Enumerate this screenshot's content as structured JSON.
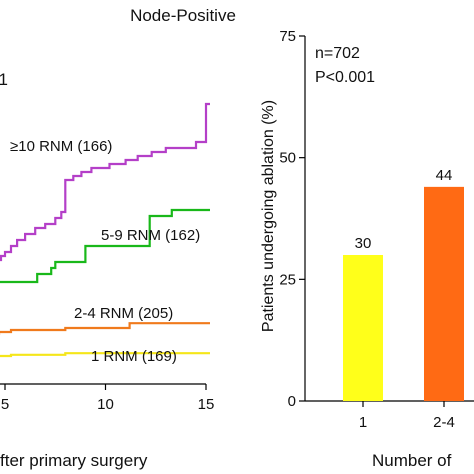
{
  "figure": {
    "title": "Node-Positive",
    "left_panel_fragment": "1"
  },
  "chart_data": [
    {
      "type": "line",
      "step": true,
      "partial_view": true,
      "xlabel": "fter primary surgery",
      "xticks": [
        5,
        10,
        15
      ],
      "xlim": [
        4.2,
        15.2
      ],
      "ylim": [
        0,
        0.8
      ],
      "grid": false,
      "series": [
        {
          "name": "≥10 RNM (166)",
          "color": "#b43fc8",
          "points": [
            [
              4.2,
              0.285
            ],
            [
              4.4,
              0.3
            ],
            [
              4.6,
              0.31
            ],
            [
              4.8,
              0.32
            ],
            [
              5.0,
              0.33
            ],
            [
              5.3,
              0.345
            ],
            [
              5.6,
              0.36
            ],
            [
              6.0,
              0.375
            ],
            [
              6.5,
              0.39
            ],
            [
              7.0,
              0.4
            ],
            [
              7.5,
              0.415
            ],
            [
              7.8,
              0.43
            ],
            [
              8.0,
              0.51
            ],
            [
              8.4,
              0.52
            ],
            [
              8.8,
              0.53
            ],
            [
              9.3,
              0.54
            ],
            [
              10.2,
              0.55
            ],
            [
              11.0,
              0.56
            ],
            [
              11.6,
              0.57
            ],
            [
              12.3,
              0.58
            ],
            [
              13.0,
              0.59
            ],
            [
              14.5,
              0.605
            ],
            [
              15.0,
              0.7
            ],
            [
              15.2,
              0.7
            ]
          ]
        },
        {
          "name": "5-9 RNM (162)",
          "color": "#19b81a",
          "points": [
            [
              4.2,
              0.255
            ],
            [
              6.6,
              0.275
            ],
            [
              7.3,
              0.29
            ],
            [
              7.5,
              0.305
            ],
            [
              9.0,
              0.345
            ],
            [
              11.0,
              0.345
            ],
            [
              12.2,
              0.42
            ],
            [
              13.3,
              0.435
            ],
            [
              15.2,
              0.435
            ]
          ]
        },
        {
          "name": "2-4 RNM (205)",
          "color": "#f07a1c",
          "points": [
            [
              4.2,
              0.125
            ],
            [
              4.7,
              0.13
            ],
            [
              5.3,
              0.135
            ],
            [
              8.0,
              0.14
            ],
            [
              10.5,
              0.14
            ],
            [
              11.2,
              0.152
            ],
            [
              15.2,
              0.152
            ]
          ]
        },
        {
          "name": "1 RNM (169)",
          "color": "#f5e619",
          "points": [
            [
              4.2,
              0.058
            ],
            [
              4.6,
              0.07
            ],
            [
              5.3,
              0.073
            ],
            [
              8.0,
              0.077
            ],
            [
              15.2,
              0.077
            ]
          ]
        }
      ]
    },
    {
      "type": "bar",
      "partial_view": true,
      "ylabel": "Patients undergoing ablation (%)",
      "xlabel": "Number of",
      "ylim": [
        0,
        75
      ],
      "yticks": [
        0,
        25,
        50,
        75
      ],
      "categories": [
        "1",
        "2-4"
      ],
      "values": [
        30,
        44
      ],
      "bar_colors": [
        "#ffff1a",
        "#ff6a14"
      ],
      "annotations": [
        "n=702",
        "P<0.001"
      ],
      "grid": false
    }
  ]
}
